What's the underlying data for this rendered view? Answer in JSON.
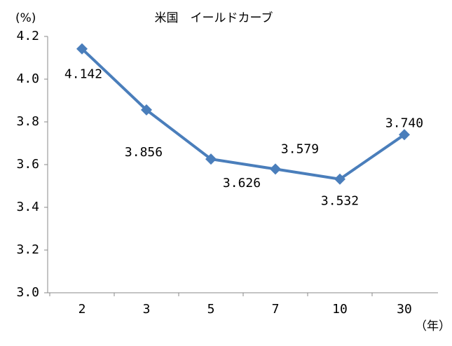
{
  "chart_data": {
    "type": "line",
    "title": "米国　イールドカーブ",
    "y_unit": "(%)",
    "x_unit": "（年）",
    "categories": [
      "2",
      "3",
      "5",
      "7",
      "10",
      "30"
    ],
    "series": [
      {
        "name": "米国",
        "color": "#4a7ebb",
        "values": [
          4.142,
          3.856,
          3.626,
          3.579,
          3.532,
          3.74
        ],
        "value_labels": [
          "4.142",
          "3.856",
          "3.626",
          "3.579",
          "3.532",
          "3.740"
        ]
      }
    ],
    "ylim": [
      3.0,
      4.2
    ],
    "yticks": [
      {
        "value": 3.0,
        "label": "3.0"
      },
      3.2,
      3.4,
      3.6,
      3.8,
      {
        "value": 4.0,
        "label": "4.0"
      },
      4.2
    ],
    "grid": false
  }
}
